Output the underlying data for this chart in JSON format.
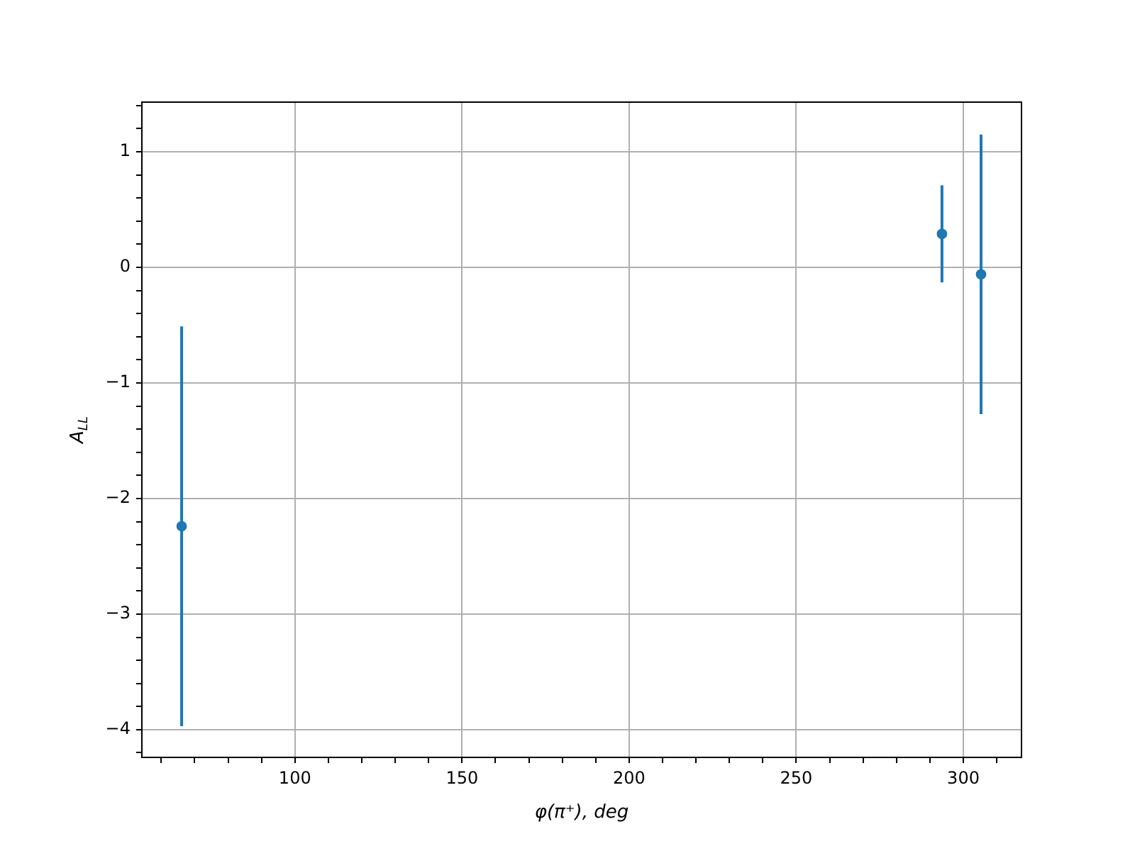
{
  "chart_data": {
    "type": "scatter",
    "xlabel": "φ(π⁺), deg",
    "ylabel": "A$_{LL}$",
    "x": [
      66.1,
      293.6,
      305.3
    ],
    "series": [
      {
        "color": "#1f77b4",
        "values": [
          -2.24,
          0.29,
          -0.06
        ],
        "errors": [
          1.73,
          0.42,
          1.21
        ]
      }
    ],
    "xlim": [
      54.2,
      317.4
    ],
    "xticks": [
      {
        "value": 60,
        "label": null
      },
      {
        "value": 70,
        "label": null
      },
      {
        "value": 80,
        "label": null
      },
      {
        "value": 90,
        "label": null
      },
      100,
      {
        "value": 110,
        "label": null
      },
      {
        "value": 120,
        "label": null
      },
      {
        "value": 130,
        "label": null
      },
      {
        "value": 140,
        "label": null
      },
      150,
      {
        "value": 160,
        "label": null
      },
      {
        "value": 170,
        "label": null
      },
      {
        "value": 180,
        "label": null
      },
      {
        "value": 190,
        "label": null
      },
      200,
      {
        "value": 210,
        "label": null
      },
      {
        "value": 220,
        "label": null
      },
      {
        "value": 230,
        "label": null
      },
      {
        "value": 240,
        "label": null
      },
      250,
      {
        "value": 260,
        "label": null
      },
      {
        "value": 270,
        "label": null
      },
      {
        "value": 280,
        "label": null
      },
      {
        "value": 290,
        "label": null
      },
      300,
      {
        "value": 310,
        "label": null
      }
    ],
    "ylim": [
      -4.24,
      1.43
    ],
    "yticks": [
      {
        "value": -4.2,
        "label": null
      },
      {
        "value": -4,
        "label": "−4"
      },
      {
        "value": -3.8,
        "label": null
      },
      {
        "value": -3.6,
        "label": null
      },
      {
        "value": -3.4,
        "label": null
      },
      {
        "value": -3.2,
        "label": null
      },
      {
        "value": -3,
        "label": "−3"
      },
      {
        "value": -2.8,
        "label": null
      },
      {
        "value": -2.6,
        "label": null
      },
      {
        "value": -2.4,
        "label": null
      },
      {
        "value": -2.2,
        "label": null
      },
      {
        "value": -2,
        "label": "−2"
      },
      {
        "value": -1.8,
        "label": null
      },
      {
        "value": -1.6,
        "label": null
      },
      {
        "value": -1.4,
        "label": null
      },
      {
        "value": -1.2,
        "label": null
      },
      {
        "value": -1,
        "label": "−1"
      },
      {
        "value": -0.8,
        "label": null
      },
      {
        "value": -0.6,
        "label": null
      },
      {
        "value": -0.4,
        "label": null
      },
      {
        "value": -0.2,
        "label": null
      },
      0,
      {
        "value": 0.2,
        "label": null
      },
      {
        "value": 0.4,
        "label": null
      },
      {
        "value": 0.6,
        "label": null
      },
      {
        "value": 0.8,
        "label": null
      },
      1,
      {
        "value": 1.2,
        "label": null
      },
      {
        "value": 1.4,
        "label": null
      }
    ],
    "grid": true,
    "marker": "circle"
  }
}
